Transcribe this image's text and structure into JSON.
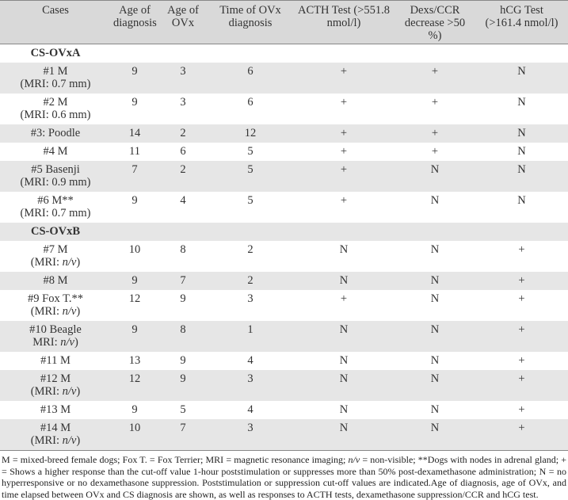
{
  "table": {
    "header": [
      [
        "Cases"
      ],
      [
        "Age of",
        "diagnosis"
      ],
      [
        "Age of",
        "OVx"
      ],
      [
        "Time of OVx",
        "diagnosis"
      ],
      [
        "ACTH Test (>551.8",
        "nmol/l)"
      ],
      [
        "Dexs/CCR",
        "decrease >50 %)"
      ],
      [
        "hCG Test",
        "(>161.4 nmol/l)"
      ]
    ],
    "sections": [
      {
        "title": "CS-OVxA",
        "rows": [
          {
            "case": [
              "#1 M",
              "(MRI: 0.7 mm)"
            ],
            "cells": [
              "9",
              "3",
              "6",
              "+",
              "+",
              "N"
            ]
          },
          {
            "case": [
              "#2 M",
              "(MRI: 0.6 mm)"
            ],
            "cells": [
              "9",
              "3",
              "6",
              "+",
              "+",
              "N"
            ]
          },
          {
            "case": [
              "#3: Poodle"
            ],
            "cells": [
              "14",
              "2",
              "12",
              "+",
              "+",
              "N"
            ]
          },
          {
            "case": [
              "#4 M"
            ],
            "cells": [
              "11",
              "6",
              "5",
              "+",
              "+",
              "N"
            ]
          },
          {
            "case": [
              "#5 Basenji",
              "(MRI: 0.9 mm)"
            ],
            "cells": [
              "7",
              "2",
              "5",
              "+",
              "N",
              "N"
            ]
          },
          {
            "case": [
              "#6 M**",
              "(MRI: 0.7 mm)"
            ],
            "cells": [
              "9",
              "4",
              "5",
              "+",
              "N",
              "N"
            ]
          }
        ]
      },
      {
        "title": "CS-OVxB",
        "rows": [
          {
            "case": [
              "#7 M",
              [
                {
                  "text": "(MRI: "
                },
                {
                  "text": "n/v",
                  "italic": true
                },
                {
                  "text": ")"
                }
              ]
            ],
            "cells": [
              "10",
              "8",
              "2",
              "N",
              "N",
              "+"
            ]
          },
          {
            "case": [
              "#8 M"
            ],
            "cells": [
              "9",
              "7",
              "2",
              "N",
              "N",
              "+"
            ]
          },
          {
            "case": [
              "#9 Fox T.**",
              [
                {
                  "text": "(MRI: "
                },
                {
                  "text": "n/v",
                  "italic": true
                },
                {
                  "text": ")"
                }
              ]
            ],
            "cells": [
              "12",
              "9",
              "3",
              "+",
              "N",
              "+"
            ]
          },
          {
            "case": [
              "#10 Beagle",
              [
                {
                  "text": "MRI: "
                },
                {
                  "text": "n/v",
                  "italic": true
                },
                {
                  "text": ")"
                }
              ]
            ],
            "cells": [
              "9",
              "8",
              "1",
              "N",
              "N",
              "+"
            ]
          },
          {
            "case": [
              "#11 M"
            ],
            "cells": [
              "13",
              "9",
              "4",
              "N",
              "N",
              "+"
            ]
          },
          {
            "case": [
              "#12 M",
              [
                {
                  "text": "(MRI: "
                },
                {
                  "text": "n/v",
                  "italic": true
                },
                {
                  "text": ")"
                }
              ]
            ],
            "cells": [
              "12",
              "9",
              "3",
              "N",
              "N",
              "+"
            ]
          },
          {
            "case": [
              "#13 M"
            ],
            "cells": [
              "9",
              "5",
              "4",
              "N",
              "N",
              "+"
            ]
          },
          {
            "case": [
              "#14 M",
              [
                {
                  "text": "(MRI: "
                },
                {
                  "text": "n/v",
                  "italic": true
                },
                {
                  "text": ")"
                }
              ]
            ],
            "cells": [
              "10",
              "7",
              "3",
              "N",
              "N",
              "+"
            ]
          }
        ]
      }
    ]
  },
  "footnote": [
    {
      "text": "M = mixed-breed female dogs; Fox T. = Fox Terrier; MRI = magnetic resonance imaging; "
    },
    {
      "text": "n/v",
      "italic": true
    },
    {
      "text": " = non-visible; **Dogs with nodes in adrenal gland; + = Shows a higher response than the cut-off value 1-hour poststimulation or suppresses more than 50% post-dexamethasone administration; N = no hyperresponsive or no dexamethasone suppression. Poststimulation or suppression cut-off values are indicated.Age of diagnosis, age of OVx, and time elapsed between OVx and CS diagnosis are shown, as well as responses to ACTH tests, dexamethasone suppression/CCR and hCG test."
    }
  ]
}
